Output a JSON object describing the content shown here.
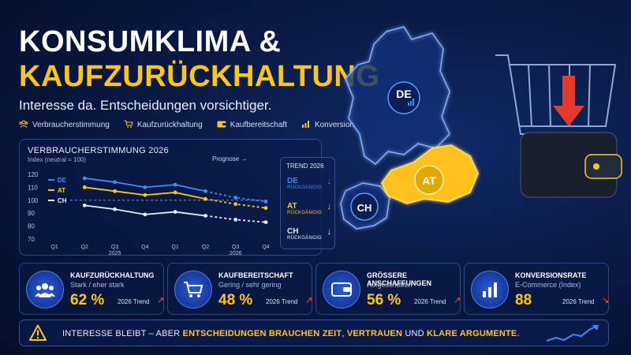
{
  "header": {
    "title_line1": "KONSUMKLIMA &",
    "title_line2": "KAUFZURÜCKHALTUNG",
    "subtitle": "Interesse da. Entscheidungen vorsichtiger."
  },
  "legend": [
    {
      "icon": "people-icon",
      "label": "Verbraucherstimmung"
    },
    {
      "icon": "cart-icon",
      "label": "Kaufzurückhaltung"
    },
    {
      "icon": "wallet-icon",
      "label": "Kaufbereitschaft"
    },
    {
      "icon": "bar-chart-icon",
      "label": "Konversion"
    }
  ],
  "chart": {
    "title": "VERBRAUCHERSTIMMUNG 2026",
    "subtitle": "Index (neutral = 100)",
    "prognose_label": "Prognose →",
    "trend_title": "TREND 2026",
    "trend": [
      {
        "country": "DE",
        "status": "RÜCKGÄNGIG",
        "arrow": "↓",
        "color": "#3d8bff"
      },
      {
        "country": "AT",
        "status": "RÜCKGÄNGIG",
        "arrow": "↓",
        "color": "#ffc61a"
      },
      {
        "country": "CH",
        "status": "RÜCKGÄNGIG",
        "arrow": "↓",
        "color": "#e8eefc"
      }
    ]
  },
  "chart_data": {
    "type": "line",
    "title": "VERBRAUCHERSTIMMUNG 2026",
    "subtitle": "Index (neutral = 100)",
    "x": [
      "Q1",
      "Q2",
      "Q3",
      "Q4",
      "Q1",
      "Q2",
      "Q3",
      "Q4"
    ],
    "x_year_labels": [
      "2025",
      "2026"
    ],
    "ylim": [
      70,
      120
    ],
    "yticks": [
      120,
      110,
      100,
      90,
      80,
      70
    ],
    "reference_line": 100,
    "forecast_from_index": 5,
    "series": [
      {
        "name": "DE",
        "color": "#3d8bff",
        "values": [
          null,
          117,
          114,
          110,
          112,
          107,
          102,
          99
        ],
        "forecast": [
          null,
          null,
          null,
          null,
          null,
          102,
          99,
          96
        ]
      },
      {
        "name": "AT",
        "color": "#ffc61a",
        "values": [
          null,
          110,
          107,
          104,
          106,
          101,
          97,
          94
        ],
        "forecast": [
          null,
          null,
          null,
          null,
          null,
          97,
          94,
          90
        ]
      },
      {
        "name": "CH",
        "color": "#e8eefc",
        "values": [
          null,
          96,
          93,
          89,
          91,
          88,
          85,
          83
        ],
        "forecast": [
          null,
          null,
          null,
          null,
          null,
          85,
          83,
          80
        ]
      }
    ]
  },
  "kpis": [
    {
      "icon": "people-icon",
      "title": "KAUFZURÜCKHALTUNG",
      "sub": "Stark / eher stark",
      "value": "62 %",
      "trend_label": "2026 Trend",
      "arrow": "↗"
    },
    {
      "icon": "cart-icon",
      "title": "KAUFBEREITSCHAFT",
      "sub": "Gering / sehr gering",
      "value": "48 %",
      "trend_label": "2026 Trend",
      "arrow": "↗"
    },
    {
      "icon": "wallet-icon",
      "title": "GRÖSSERE ANSCHAFFUNGEN",
      "sub": "Aufgeschoben",
      "value": "56 %",
      "trend_label": "2026 Trend",
      "arrow": "↗"
    },
    {
      "icon": "bar-chart-icon",
      "title": "KONVERSIONSRATE",
      "sub": "E-Commerce (Index)",
      "value": "88",
      "trend_label": "2026 Trend",
      "arrow": "↘"
    }
  ],
  "banner": {
    "part1": "INTERESSE BLEIBT – ABER ",
    "part2": "ENTSCHEIDUNGEN BRAUCHEN ZEIT",
    "part3": ", ",
    "part4": "VERTRAUEN",
    "part5": " UND ",
    "part6": "KLARE ARGUMENTE",
    "part7": "."
  },
  "map": {
    "de_label": "DE",
    "at_label": "AT",
    "ch_label": "CH"
  }
}
